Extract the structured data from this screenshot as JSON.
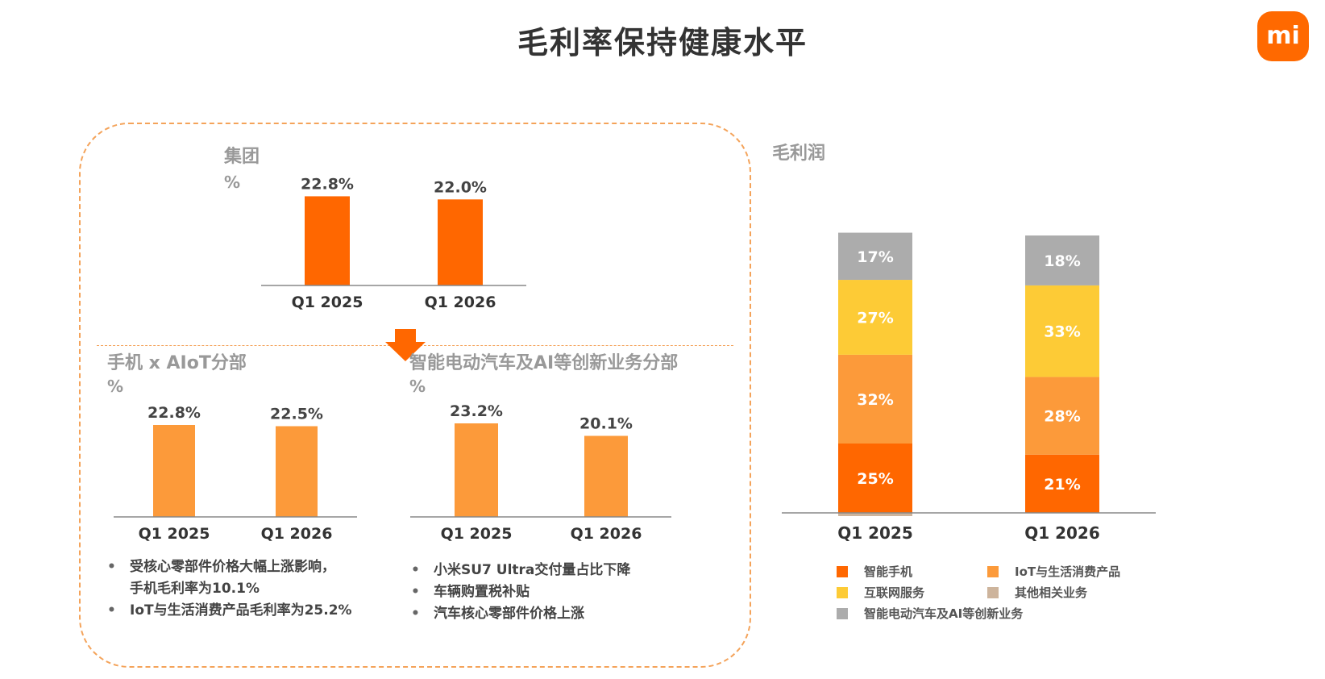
{
  "header": {
    "title": "毛利率保持健康水平",
    "logo": "mi"
  },
  "group": {
    "label": "集团",
    "unit": "%"
  },
  "aiot": {
    "label": "手机 x AIoT分部",
    "unit": "%",
    "bullets": [
      {
        "line1": "受核心零部件价格大幅上涨影响，",
        "line2": "手机毛利率为10.1%"
      },
      {
        "line1": "IoT与生活消费产品毛利率为25.2%",
        "line2": ""
      }
    ]
  },
  "ev": {
    "label": "智能电动汽车及AI等创新业务分部",
    "unit": "%",
    "bullets": [
      "小米SU7 Ultra交付量占比下降",
      "车辆购置税补贴",
      "汽车核心零部件价格上涨"
    ]
  },
  "profit": {
    "label": "毛利润"
  },
  "colors": {
    "dark_orange": "#ff6700",
    "light_orange": "#fc9a3a",
    "yellow": "#fdcb36",
    "tan": "#cdb49c",
    "gray": "#acacac"
  },
  "chart_data": [
    {
      "type": "bar",
      "name_key": "group",
      "categories": [
        "Q1 2025",
        "Q1 2026"
      ],
      "values": [
        22.8,
        22.0
      ],
      "labels": [
        "22.8%",
        "22.0%"
      ],
      "unit": "%"
    },
    {
      "type": "bar",
      "name_key": "aiot",
      "categories": [
        "Q1 2025",
        "Q1 2026"
      ],
      "values": [
        22.8,
        22.5
      ],
      "labels": [
        "22.8%",
        "22.5%"
      ],
      "unit": "%"
    },
    {
      "type": "bar",
      "name_key": "ev",
      "categories": [
        "Q1 2025",
        "Q1 2026"
      ],
      "values": [
        23.2,
        20.1
      ],
      "labels": [
        "23.2%",
        "20.1%"
      ],
      "unit": "%"
    },
    {
      "type": "bar",
      "stacked": true,
      "name_key": "profit",
      "categories": [
        "Q1 2025",
        "Q1 2026"
      ],
      "series": [
        {
          "name": "智能手机",
          "values": [
            25,
            21
          ],
          "color": "#ff6700"
        },
        {
          "name": "IoT与生活消费产品",
          "values": [
            32,
            28
          ],
          "color": "#fc9a3a"
        },
        {
          "name": "互联网服务",
          "values": [
            27,
            33
          ],
          "color": "#fdcb36"
        },
        {
          "name": "其他相关业务",
          "values": [
            -1,
            0
          ],
          "color": "#cdb49c"
        },
        {
          "name": "智能电动汽车及AI等创新业务",
          "values": [
            17,
            18
          ],
          "color": "#acacac"
        }
      ]
    }
  ]
}
